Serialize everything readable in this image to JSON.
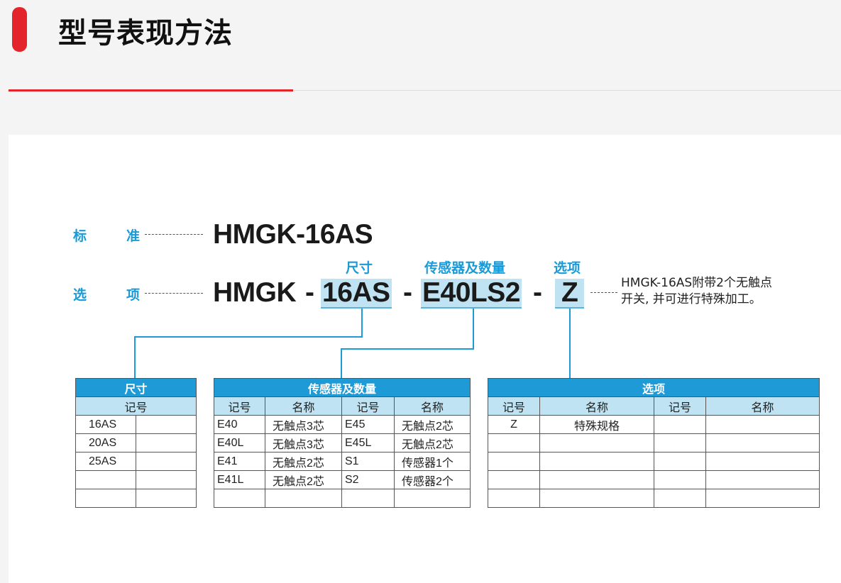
{
  "header": {
    "title": "型号表现方法"
  },
  "diagram": {
    "standard_label_1": "标",
    "standard_label_2": "准",
    "standard_model": "HMGK-16AS",
    "option_label_1": "选",
    "option_label_2": "项",
    "model_prefix": "HMGK",
    "sep": "-",
    "size_code": "16AS",
    "sensor_code": "E40LS2",
    "option_code": "Z",
    "size_caption": "尺寸",
    "sensor_caption": "传感器及数量",
    "option_caption": "选项",
    "note_line1": "HMGK-16AS附带2个无触点",
    "note_line2": "开关, 并可进行特殊加工。"
  },
  "size_table": {
    "title": "尺寸",
    "header": "记号",
    "rows": [
      "16AS",
      "20AS",
      "25AS",
      "",
      ""
    ]
  },
  "sensor_table": {
    "title": "传感器及数量",
    "headers": [
      "记号",
      "名称",
      "记号",
      "名称"
    ],
    "rows": [
      [
        "E40",
        "无触点3芯",
        "E45",
        "无触点2芯"
      ],
      [
        "E40L",
        "无触点3芯",
        "E45L",
        "无触点2芯"
      ],
      [
        "E41",
        "无触点2芯",
        "S1",
        "传感器1个"
      ],
      [
        "E41L",
        "无触点2芯",
        "S2",
        "传感器2个"
      ],
      [
        "",
        "",
        "",
        ""
      ]
    ]
  },
  "option_table": {
    "title": "选项",
    "headers": [
      "记号",
      "名称",
      "记号",
      "名称"
    ],
    "rows": [
      [
        "Z",
        "特殊规格",
        "",
        ""
      ],
      [
        "",
        "",
        "",
        ""
      ],
      [
        "",
        "",
        "",
        ""
      ],
      [
        "",
        "",
        "",
        ""
      ],
      [
        "",
        "",
        "",
        ""
      ]
    ]
  },
  "colors": {
    "accent_red": "#e3242b",
    "blue": "#1e9ad6",
    "light_blue": "#bfe3f2"
  }
}
